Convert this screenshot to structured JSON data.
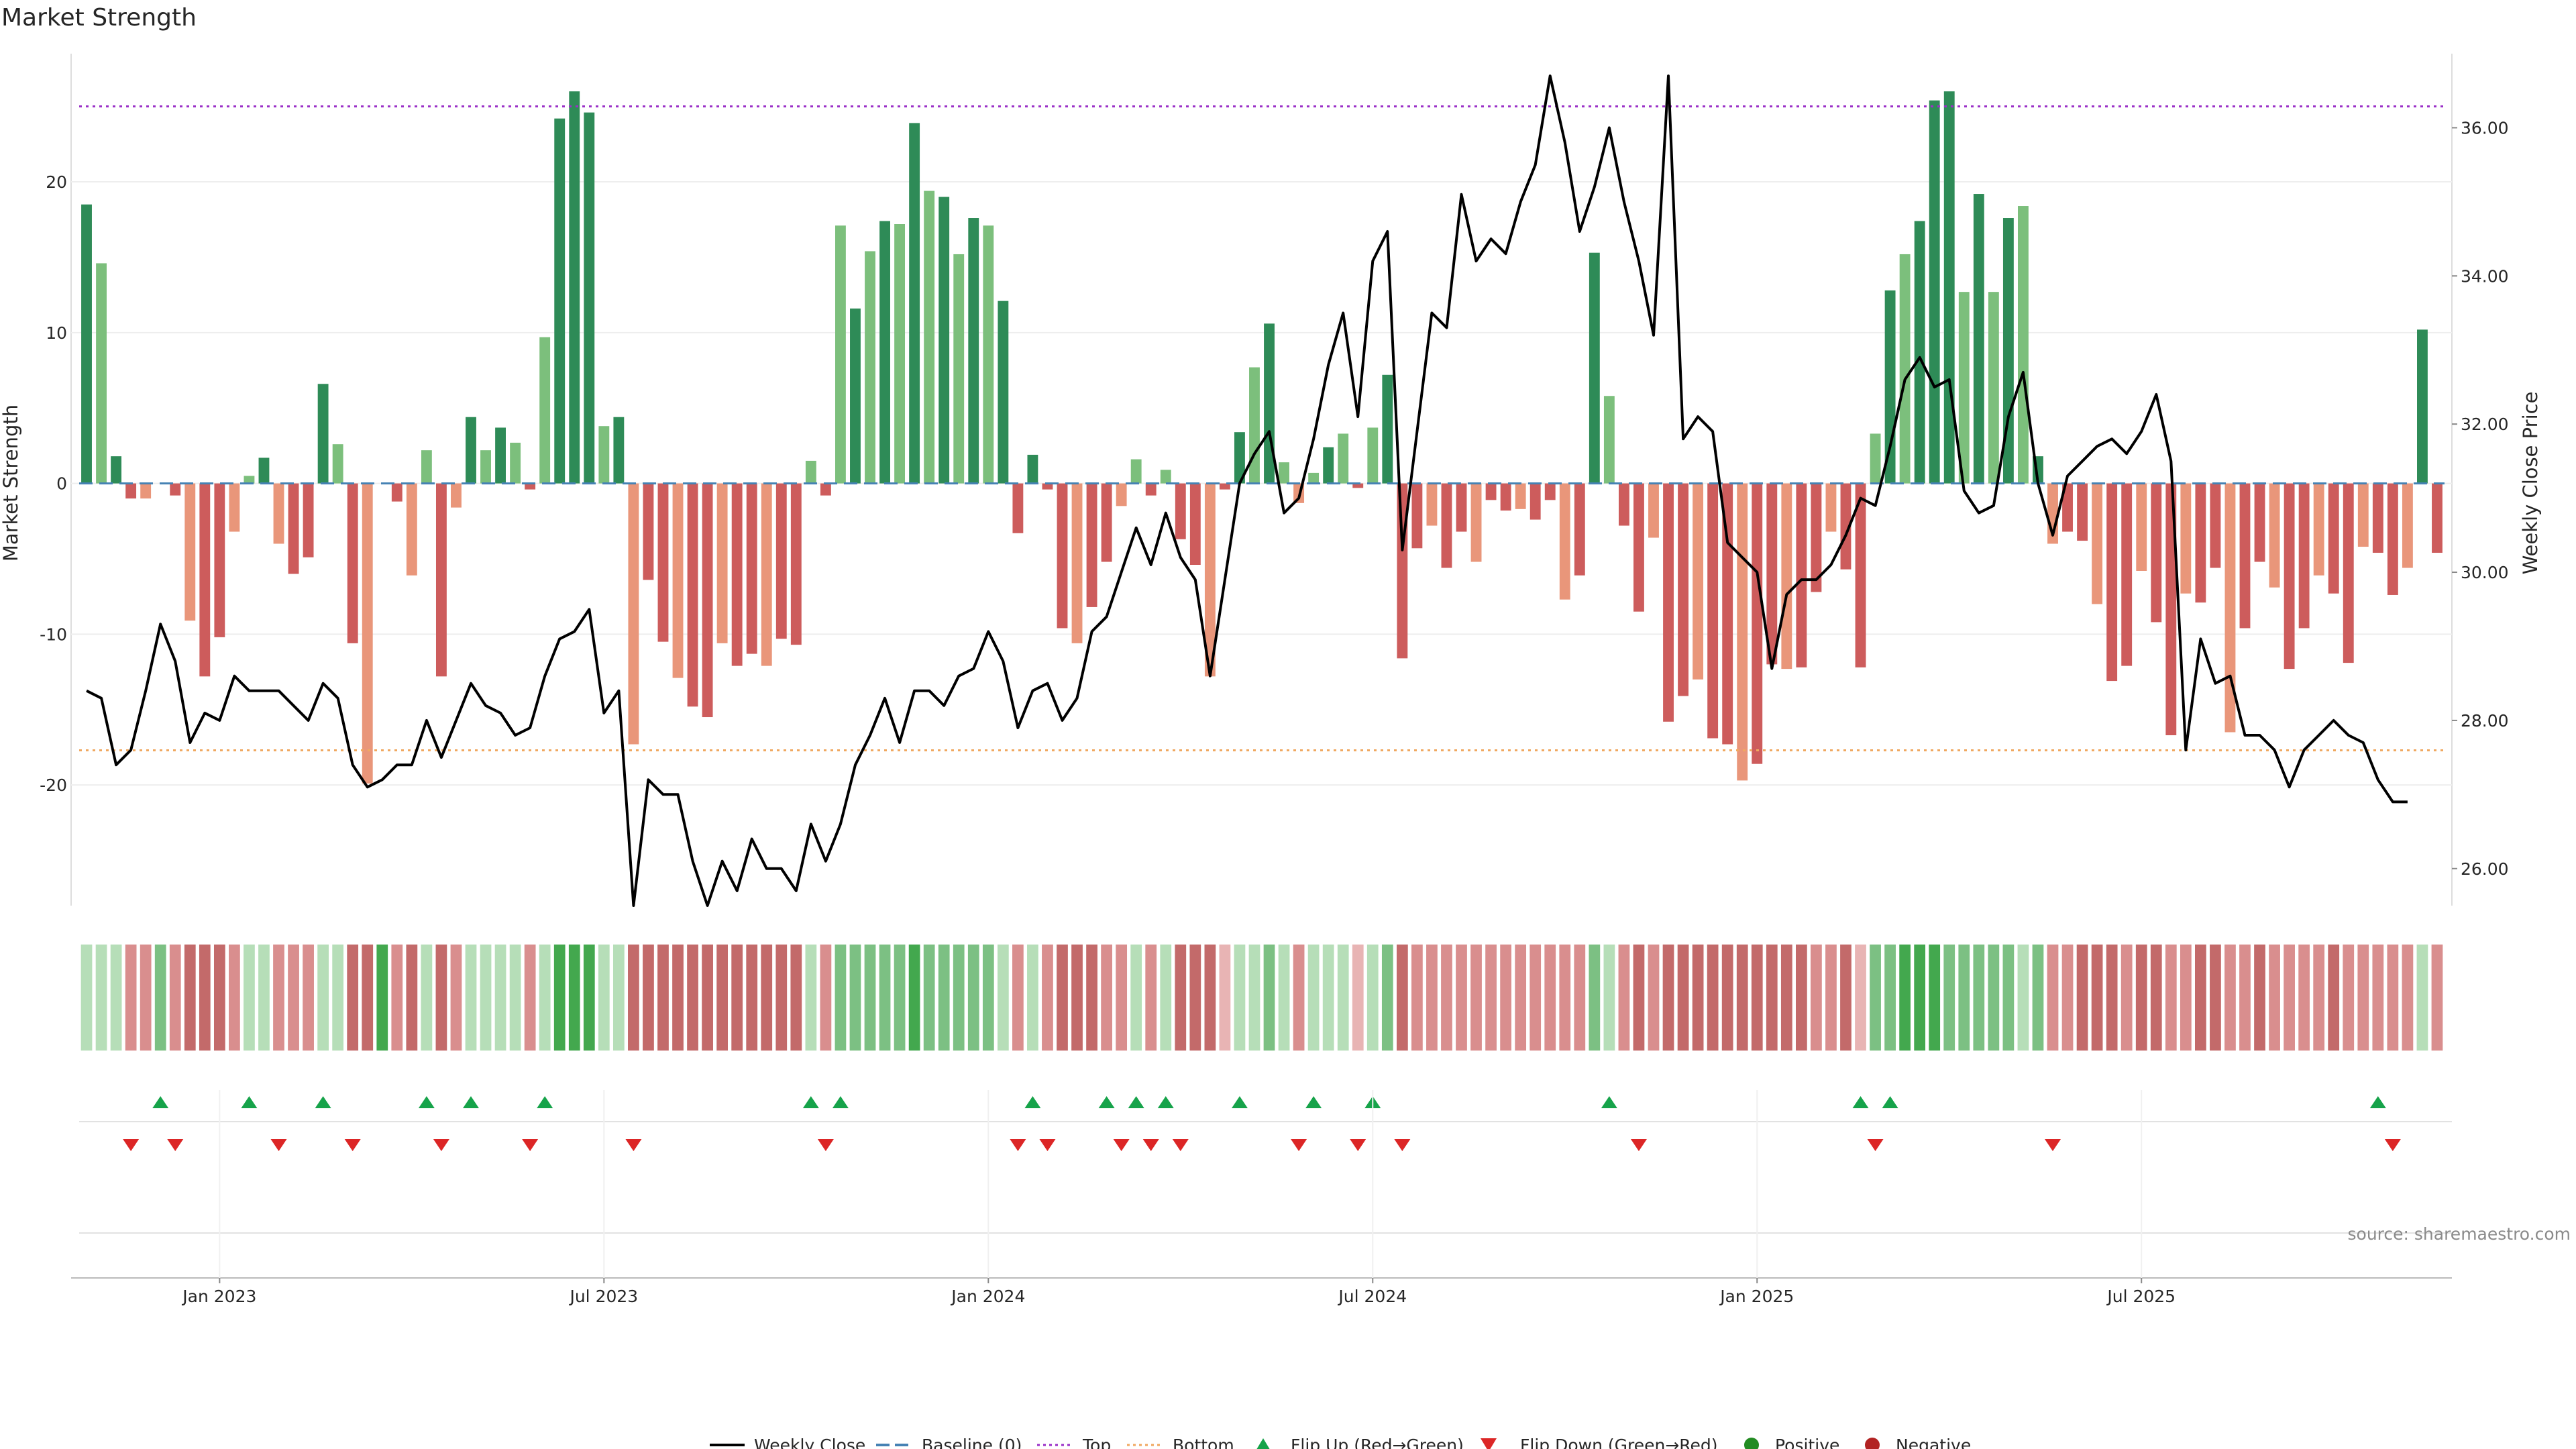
{
  "title": "Market Strength",
  "chart_data": {
    "type": "bar",
    "title": "Market Strength",
    "ylabel_left": "Market Strength",
    "ylabel_right": "Weekly Close Price",
    "ylim_left": [
      -28,
      28.5
    ],
    "ylim_right": [
      25.5,
      37.0
    ],
    "yticks_left": [
      20,
      10,
      0,
      -10,
      -20
    ],
    "yticks_right": [
      "36.00",
      "34.00",
      "32.00",
      "30.00",
      "28.00",
      "26.00"
    ],
    "xticks": [
      "Jan 2023",
      "Jul 2023",
      "Jan 2024",
      "Jul 2024",
      "Jan 2025",
      "Jul 2025"
    ],
    "xtick_weeks": [
      9,
      35,
      61,
      87,
      113,
      139
    ],
    "top_line": 25.0,
    "bottom_line": -17.7,
    "source": "source: sharemaestro.com",
    "strength": [
      18.5,
      14.6,
      1.8,
      -1.0,
      -1.0,
      0,
      -0.8,
      -9.1,
      -12.8,
      -10.2,
      -3.2,
      0.5,
      1.7,
      -4.0,
      -6.0,
      -4.9,
      6.6,
      2.6,
      -10.6,
      -19.9,
      0,
      -1.2,
      -6.1,
      2.2,
      -12.8,
      -1.6,
      4.4,
      2.2,
      3.7,
      2.7,
      -0.4,
      9.7,
      24.2,
      26.0,
      24.6,
      3.8,
      4.4,
      -17.3,
      -6.4,
      -10.5,
      -12.9,
      -14.8,
      -15.5,
      -10.6,
      -12.1,
      -11.3,
      -12.1,
      -10.3,
      -10.7,
      1.5,
      -0.8,
      17.1,
      11.6,
      15.4,
      17.4,
      17.2,
      23.9,
      19.4,
      19.0,
      15.2,
      17.6,
      17.1,
      12.1,
      -3.3,
      1.9,
      -0.4,
      -9.6,
      -10.6,
      -8.2,
      -5.2,
      -1.5,
      1.6,
      -0.8,
      0.9,
      -3.7,
      -5.4,
      -12.8,
      -0.4,
      3.4,
      7.7,
      10.6,
      1.4,
      -1.3,
      0.7,
      2.4,
      3.3,
      -0.3,
      3.7,
      7.2,
      -11.6,
      -4.3,
      -2.8,
      -5.6,
      -3.2,
      -5.2,
      -1.1,
      -1.8,
      -1.7,
      -2.4,
      -1.1,
      -7.7,
      -6.1,
      15.3,
      5.8,
      -2.8,
      -8.5,
      -3.6,
      -15.8,
      -14.1,
      -13.0,
      -16.9,
      -17.3,
      -19.7,
      -18.6,
      -12.0,
      -12.3,
      -12.2,
      -7.2,
      -3.2,
      -5.7,
      -12.2,
      3.3,
      12.8,
      15.2,
      17.4,
      25.4,
      26.0,
      12.7,
      19.2,
      12.7,
      17.6,
      18.4,
      1.8,
      -4.0,
      -3.2,
      -3.8,
      -8.0,
      -13.1,
      -12.1,
      -5.8,
      -9.2,
      -16.7,
      -7.3,
      -7.9,
      -5.6,
      -16.5,
      -9.6,
      -5.2,
      -6.9,
      -12.3,
      -9.6,
      -6.1,
      -7.3,
      -11.9,
      -4.2,
      -4.6,
      -7.4,
      -5.6,
      10.2,
      -4.6
    ],
    "weekly_close": [
      28.4,
      28.3,
      27.4,
      27.6,
      28.4,
      29.3,
      28.8,
      27.7,
      28.1,
      28.0,
      28.6,
      28.4,
      28.4,
      28.4,
      28.2,
      28.0,
      28.5,
      28.3,
      27.4,
      27.1,
      27.2,
      27.4,
      27.4,
      28.0,
      27.5,
      28.0,
      28.5,
      28.2,
      28.1,
      27.8,
      27.9,
      28.6,
      29.1,
      29.2,
      29.5,
      28.1,
      28.4,
      25.5,
      27.2,
      27.0,
      27.0,
      26.1,
      25.5,
      26.1,
      25.7,
      26.4,
      26.0,
      26.0,
      25.7,
      26.6,
      26.1,
      26.6,
      27.4,
      27.8,
      28.3,
      27.7,
      28.4,
      28.4,
      28.2,
      28.6,
      28.7,
      29.2,
      28.8,
      27.9,
      28.4,
      28.5,
      28.0,
      28.3,
      29.2,
      29.4,
      30.0,
      30.6,
      30.1,
      30.8,
      30.2,
      29.9,
      28.6,
      29.9,
      31.2,
      31.6,
      31.9,
      30.8,
      31.0,
      31.8,
      32.8,
      33.5,
      32.1,
      34.2,
      34.6,
      30.3,
      31.9,
      33.5,
      33.3,
      35.1,
      34.2,
      34.5,
      34.3,
      35.0,
      35.5,
      36.7,
      35.8,
      34.6,
      35.2,
      36.0,
      35.0,
      34.2,
      33.2,
      36.7,
      31.8,
      32.1,
      31.9,
      30.4,
      30.2,
      30.0,
      28.7,
      29.7,
      29.9,
      29.9,
      30.1,
      30.5,
      31.0,
      30.9,
      31.7,
      32.6,
      32.9,
      32.5,
      32.6,
      31.1,
      30.8,
      30.9,
      32.1,
      32.7,
      31.2,
      30.5,
      31.3,
      31.5,
      31.7,
      31.8,
      31.6,
      31.9,
      32.4,
      31.5,
      27.6,
      29.1,
      28.5,
      28.6,
      27.8,
      27.8,
      27.6,
      27.1,
      27.6,
      27.8,
      28.0,
      27.8,
      27.7,
      27.2,
      26.9,
      26.9
    ]
  },
  "heatmap_strips": [
    1,
    1,
    1,
    2,
    2,
    2,
    2,
    3,
    3,
    3,
    2,
    1,
    1,
    2,
    2,
    2,
    1,
    1,
    3,
    4,
    3,
    2,
    3,
    1,
    3,
    2,
    1,
    1,
    1,
    1,
    2,
    1,
    3,
    3,
    3,
    1,
    1,
    4,
    3,
    3,
    3,
    3,
    4,
    3,
    3,
    3,
    3,
    3,
    3,
    1,
    2,
    2,
    2,
    2,
    2,
    2,
    3,
    2,
    2,
    2,
    2,
    2,
    1,
    2,
    1,
    2,
    3,
    3,
    3,
    2,
    2,
    1,
    2,
    1,
    3,
    3,
    3,
    1,
    1,
    1,
    2,
    1,
    2,
    1,
    1,
    1,
    1,
    1,
    2,
    3,
    2,
    2,
    2,
    2,
    2,
    2,
    2,
    2,
    2,
    2,
    2,
    2,
    2,
    1,
    2,
    3,
    2,
    3,
    3,
    3,
    3,
    3,
    3,
    3,
    3,
    3,
    3,
    2,
    2,
    3,
    1,
    2,
    2,
    3,
    3,
    3,
    2,
    2,
    2,
    2,
    2,
    1,
    2,
    2,
    2,
    3,
    3,
    3,
    2,
    3,
    3,
    2,
    2,
    3,
    3,
    2,
    2,
    3,
    2,
    2,
    2,
    2,
    3,
    2,
    2,
    2,
    2,
    2,
    1,
    2
  ],
  "flip_up_weeks": [
    5,
    11,
    16,
    23,
    26,
    31,
    49,
    51,
    64,
    69,
    71,
    73,
    78,
    83,
    87,
    103,
    120,
    122,
    155
  ],
  "flip_down_weeks": [
    3,
    6,
    13,
    18,
    24,
    30,
    37,
    50,
    63,
    65,
    70,
    72,
    74,
    82,
    86,
    89,
    105,
    121,
    133,
    156
  ],
  "legend": {
    "weekly_close": "Weekly Close",
    "baseline": "Baseline (0)",
    "top": "Top",
    "bottom": "Bottom",
    "flip_up": "Flip Up (Red→Green)",
    "flip_down": "Flip Down (Green→Red)",
    "positive": "Positive",
    "negative": "Negative"
  },
  "colors": {
    "green_strong": "#2e8b57",
    "green_light": "#7cbf7c",
    "red_strong": "#cd5c5c",
    "red_light": "#e9967a",
    "price_line": "#000000",
    "top_line": "#9b30c8",
    "bottom_line": "#f0a860",
    "baseline": "#4682b4",
    "flip_up": "#16a34a",
    "flip_down": "#dc2626",
    "positive": "#228b22",
    "negative": "#b22222"
  }
}
